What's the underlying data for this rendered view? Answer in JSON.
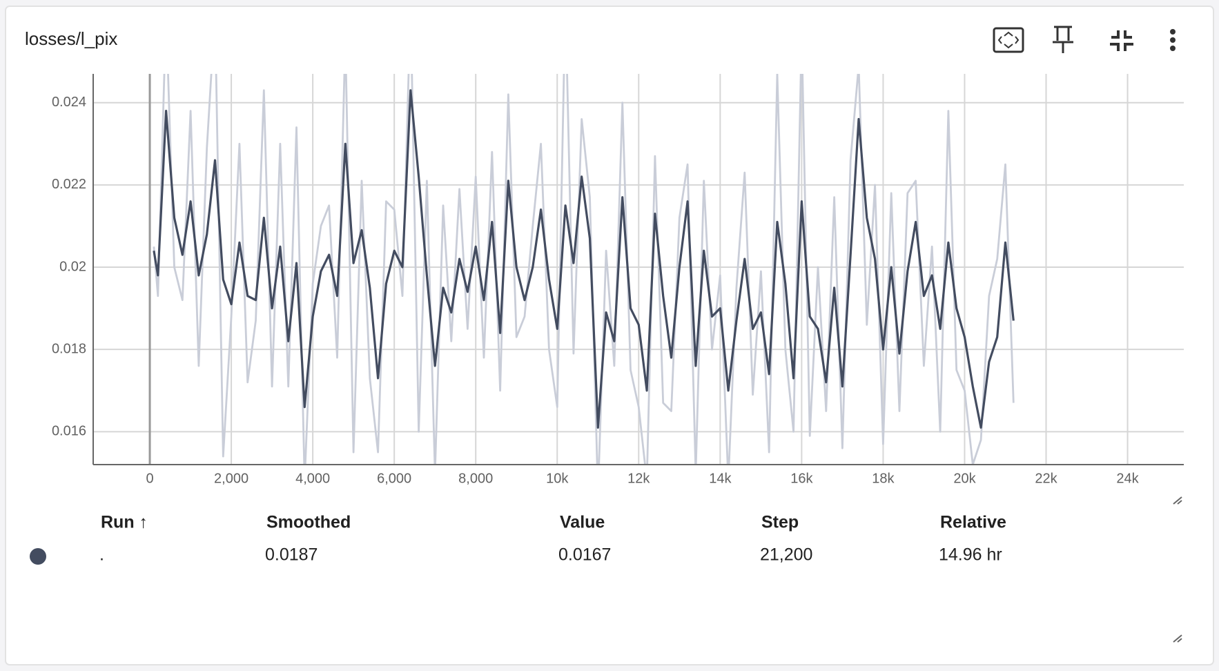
{
  "chart_data": {
    "type": "line",
    "title": "losses/l_pix",
    "x": [
      100,
      200,
      400,
      600,
      800,
      1000,
      1200,
      1400,
      1600,
      1800,
      2000,
      2200,
      2400,
      2600,
      2800,
      3000,
      3200,
      3400,
      3600,
      3800,
      4000,
      4200,
      4400,
      4600,
      4800,
      5000,
      5200,
      5400,
      5600,
      5800,
      6000,
      6200,
      6400,
      6600,
      6800,
      7000,
      7200,
      7400,
      7600,
      7800,
      8000,
      8200,
      8400,
      8600,
      8800,
      9000,
      9200,
      9400,
      9600,
      9800,
      10000,
      10200,
      10400,
      10600,
      10800,
      11000,
      11200,
      11400,
      11600,
      11800,
      12000,
      12200,
      12400,
      12600,
      12800,
      13000,
      13200,
      13400,
      13600,
      13800,
      14000,
      14200,
      14400,
      14600,
      14800,
      15000,
      15200,
      15400,
      15600,
      15800,
      16000,
      16200,
      16400,
      16600,
      16800,
      17000,
      17200,
      17400,
      17600,
      17800,
      18000,
      18200,
      18400,
      18600,
      18800,
      19000,
      19200,
      19400,
      19600,
      19800,
      20000,
      20200,
      20400,
      20600,
      20800,
      21000,
      21200
    ],
    "series": [
      {
        "color": "#c9cdd8",
        "values": [
          0.0205,
          0.0193,
          0.0262,
          0.02,
          0.0192,
          0.0238,
          0.0176,
          0.0229,
          0.0262,
          0.0154,
          0.0188,
          0.023,
          0.0172,
          0.0187,
          0.0243,
          0.0171,
          0.023,
          0.0171,
          0.0234,
          0.0148,
          0.0196,
          0.021,
          0.0215,
          0.0178,
          0.0256,
          0.0155,
          0.0221,
          0.0173,
          0.0155,
          0.0216,
          0.0214,
          0.0193,
          0.0264,
          0.016,
          0.0221,
          0.015,
          0.0215,
          0.0182,
          0.0219,
          0.0185,
          0.0222,
          0.0178,
          0.0228,
          0.017,
          0.0242,
          0.0183,
          0.0188,
          0.021,
          0.023,
          0.018,
          0.0166,
          0.0265,
          0.0179,
          0.0236,
          0.0217,
          0.0145,
          0.0204,
          0.0176,
          0.024,
          0.0175,
          0.0166,
          0.0148,
          0.0227,
          0.0167,
          0.0165,
          0.0212,
          0.0225,
          0.015,
          0.0221,
          0.018,
          0.0198,
          0.0148,
          0.0195,
          0.0223,
          0.0169,
          0.0199,
          0.0155,
          0.0247,
          0.018,
          0.016,
          0.0257,
          0.0159,
          0.02,
          0.0165,
          0.0217,
          0.0156,
          0.0226,
          0.0249,
          0.0186,
          0.022,
          0.0157,
          0.0218,
          0.0165,
          0.0218,
          0.0221,
          0.0176,
          0.0205,
          0.016,
          0.0238,
          0.0175,
          0.017,
          0.0152,
          0.0158,
          0.0193,
          0.0202,
          0.0225,
          0.0167
        ]
      },
      {
        "color": "#434c60",
        "values": [
          0.0204,
          0.0198,
          0.0238,
          0.0212,
          0.0203,
          0.0216,
          0.0198,
          0.0208,
          0.0226,
          0.0197,
          0.0191,
          0.0206,
          0.0193,
          0.0192,
          0.0212,
          0.019,
          0.0205,
          0.0182,
          0.0201,
          0.0166,
          0.0188,
          0.0199,
          0.0203,
          0.0193,
          0.023,
          0.0201,
          0.0209,
          0.0195,
          0.0173,
          0.0196,
          0.0204,
          0.02,
          0.0243,
          0.0222,
          0.0198,
          0.0176,
          0.0195,
          0.0189,
          0.0202,
          0.0194,
          0.0205,
          0.0192,
          0.0211,
          0.0184,
          0.0221,
          0.02,
          0.0192,
          0.02,
          0.0214,
          0.0197,
          0.0185,
          0.0215,
          0.0201,
          0.0222,
          0.0207,
          0.0161,
          0.0189,
          0.0182,
          0.0217,
          0.019,
          0.0186,
          0.017,
          0.0213,
          0.0193,
          0.0178,
          0.02,
          0.0216,
          0.0176,
          0.0204,
          0.0188,
          0.019,
          0.017,
          0.0187,
          0.0202,
          0.0185,
          0.0189,
          0.0174,
          0.0211,
          0.0196,
          0.0173,
          0.0216,
          0.0188,
          0.0185,
          0.0172,
          0.0195,
          0.0171,
          0.0203,
          0.0236,
          0.0212,
          0.0202,
          0.018,
          0.02,
          0.0179,
          0.0199,
          0.0211,
          0.0193,
          0.0198,
          0.0185,
          0.0206,
          0.019,
          0.0183,
          0.0171,
          0.0161,
          0.0177,
          0.0183,
          0.0206,
          0.0187
        ]
      }
    ],
    "xlim": [
      -1390,
      25380
    ],
    "xticks": [
      0,
      {
        "value": 2000,
        "label": "2,000"
      },
      {
        "value": 4000,
        "label": "4,000"
      },
      {
        "value": 6000,
        "label": "6,000"
      },
      {
        "value": 8000,
        "label": "8,000"
      },
      {
        "value": 10000,
        "label": "10k"
      },
      {
        "value": 12000,
        "label": "12k"
      },
      {
        "value": 14000,
        "label": "14k"
      },
      {
        "value": 16000,
        "label": "16k"
      },
      {
        "value": 18000,
        "label": "18k"
      },
      {
        "value": 20000,
        "label": "20k"
      },
      {
        "value": 22000,
        "label": "22k"
      },
      {
        "value": 24000,
        "label": "24k"
      }
    ],
    "ylim": [
      0.0152,
      0.0247
    ],
    "yticks": [
      0.016,
      0.018,
      0.02,
      0.022,
      0.024
    ],
    "grid": true
  },
  "table": {
    "columns": [
      "Run ↑",
      "Smoothed",
      "Value",
      "Step",
      "Relative"
    ],
    "rows": [
      [
        ".",
        "0.0187",
        "0.0167",
        "21,200",
        "14.96 hr"
      ]
    ]
  }
}
